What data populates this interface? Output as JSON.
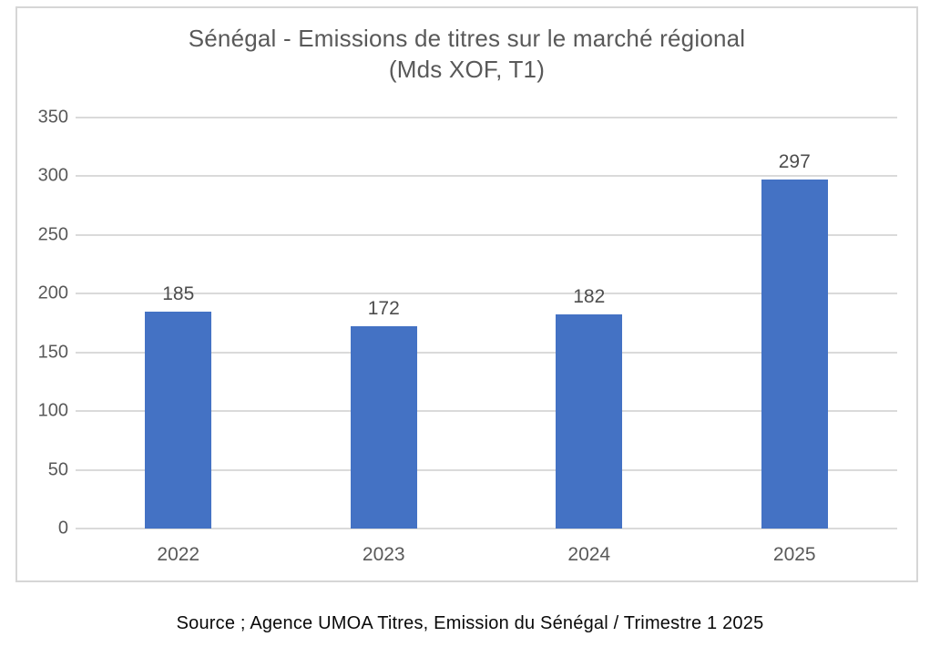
{
  "chart_data": {
    "type": "bar",
    "title": "Sénégal - Emissions de titres sur le marché régional",
    "subtitle": "(Mds XOF, T1)",
    "categories": [
      "2022",
      "2023",
      "2024",
      "2025"
    ],
    "values": [
      185,
      172,
      182,
      297
    ],
    "xlabel": "",
    "ylabel": "",
    "ylim": [
      0,
      350
    ],
    "yticks": [
      0,
      50,
      100,
      150,
      200,
      250,
      300,
      350
    ],
    "grid": true,
    "legend": false,
    "data_labels": true,
    "bar_color": "#4472C4",
    "gridline_color": "#dadada",
    "axis_text_color": "#595959",
    "data_label_color": "#4d4d4d",
    "title_color": "#595959",
    "frame_border_color": "#d6d6d6"
  },
  "caption": {
    "text": "Source ; Agence UMOA Titres, Emission du Sénégal / Trimestre 1 2025"
  }
}
